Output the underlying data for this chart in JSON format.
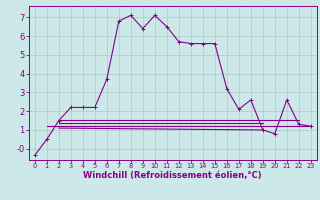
{
  "background_color": "#cce8e8",
  "grid_color": "#aacccc",
  "line_color": "#880088",
  "xlabel": "Windchill (Refroidissement éolien,°C)",
  "xlabel_fontsize": 6.0,
  "tick_fontsize_y": 6.0,
  "tick_fontsize_x": 4.8,
  "ylabel_ticks": [
    0,
    1,
    2,
    3,
    4,
    5,
    6,
    7
  ],
  "xlim": [
    -0.5,
    23.5
  ],
  "ylim": [
    -0.6,
    7.6
  ],
  "main_series_x": [
    0,
    1,
    2,
    3,
    4,
    5,
    6,
    7,
    8,
    9,
    10,
    11,
    12,
    13,
    14,
    15,
    16,
    17,
    18,
    19,
    20,
    21,
    22,
    23
  ],
  "main_series_y": [
    -0.35,
    0.5,
    1.5,
    2.2,
    2.2,
    2.2,
    3.7,
    6.8,
    7.1,
    6.4,
    7.1,
    6.5,
    5.7,
    5.6,
    5.6,
    5.6,
    3.2,
    2.1,
    2.6,
    1.0,
    0.8,
    2.6,
    1.3,
    1.2
  ],
  "flat_series": [
    {
      "x": [
        1,
        23
      ],
      "y": [
        1.2,
        1.2
      ]
    },
    {
      "x": [
        2,
        22
      ],
      "y": [
        1.55,
        1.55
      ]
    },
    {
      "x": [
        2,
        19
      ],
      "y": [
        1.35,
        1.35
      ]
    },
    {
      "x": [
        2,
        19
      ],
      "y": [
        1.1,
        1.0
      ]
    }
  ]
}
